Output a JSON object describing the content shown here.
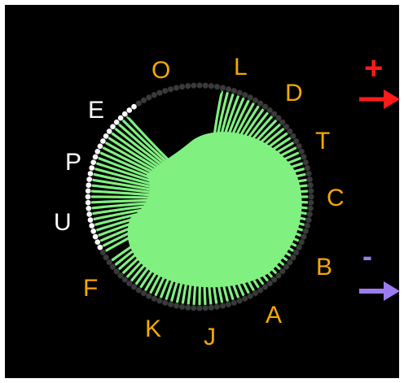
{
  "diagram": {
    "colors": {
      "background": "#000000",
      "chord": "#80f080",
      "ring_node": "#3a3a3a",
      "highlight_node": "#ffffff",
      "label_orange": "#f5a800",
      "label_white": "#ffffff",
      "plus": "#ff1a1a",
      "minus": "#9b7cf0"
    },
    "labels": [
      {
        "id": "O",
        "text": "O",
        "color": "orange"
      },
      {
        "id": "L",
        "text": "L",
        "color": "orange"
      },
      {
        "id": "D",
        "text": "D",
        "color": "orange"
      },
      {
        "id": "T",
        "text": "T",
        "color": "orange"
      },
      {
        "id": "C",
        "text": "C",
        "color": "orange"
      },
      {
        "id": "B",
        "text": "B",
        "color": "orange"
      },
      {
        "id": "A",
        "text": "A",
        "color": "orange"
      },
      {
        "id": "J",
        "text": "J",
        "color": "orange"
      },
      {
        "id": "K",
        "text": "K",
        "color": "orange"
      },
      {
        "id": "F",
        "text": "F",
        "color": "orange"
      },
      {
        "id": "U",
        "text": "U",
        "color": "white"
      },
      {
        "id": "P",
        "text": "P",
        "color": "white"
      },
      {
        "id": "E",
        "text": "E",
        "color": "white"
      }
    ],
    "legend": {
      "plus": {
        "symbol": "+",
        "arrow": "right-arrow-red"
      },
      "minus": {
        "symbol": "-",
        "arrow": "right-arrow-purple"
      }
    }
  }
}
